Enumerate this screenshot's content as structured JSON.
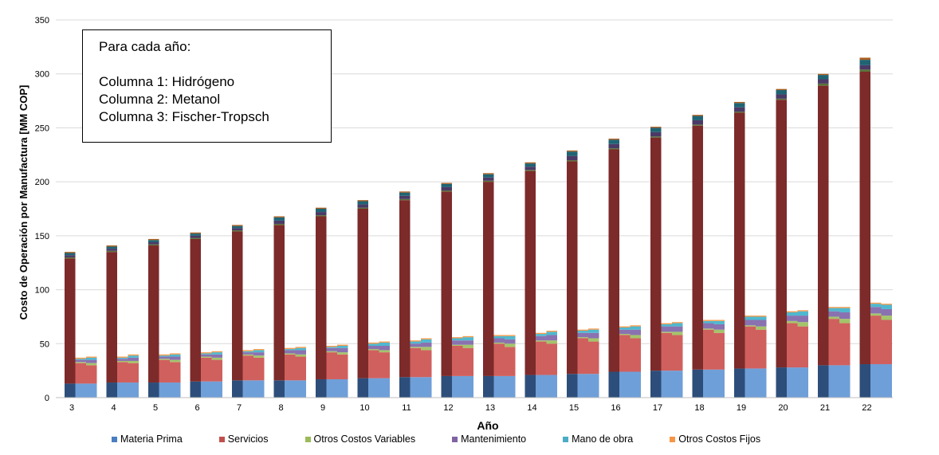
{
  "chart_data": {
    "type": "bar",
    "stacked": true,
    "grouped": true,
    "title": "",
    "xlabel": "Año",
    "ylabel": "Costo de Operación por Manufactura [MM COP]",
    "ylim": [
      0,
      350
    ],
    "yticks": [
      0,
      50,
      100,
      150,
      200,
      250,
      300,
      350
    ],
    "grid": true,
    "legend_position": "bottom",
    "categories": [
      "3",
      "4",
      "5",
      "6",
      "7",
      "8",
      "9",
      "10",
      "11",
      "12",
      "13",
      "14",
      "15",
      "16",
      "17",
      "18",
      "19",
      "20",
      "21",
      "22"
    ],
    "group_members": [
      "Columna 1: Hidrógeno",
      "Columna 2: Metanol",
      "Columna 3: Fischer-Tropsch"
    ],
    "series_colors": {
      "Materia Prima": "#6f9fd8",
      "Servicios": "#d0605e",
      "Otros Costos Variables": "#a4c46a",
      "Mantenimiento": "#8a72b0",
      "Mano de obra": "#4fb8cf",
      "Otros Costos Fijos": "#f79a49"
    },
    "dark_series_colors": {
      "Materia Prima": "#2d4e7a",
      "Servicios": "#7d2a2a",
      "Otros Costos Variables": "#5a7238",
      "Mantenimiento": "#4b3a66",
      "Mano de obra": "#206474",
      "Otros Costos Fijos": "#a95d1e"
    },
    "bars": {
      "Hidrógeno": {
        "Materia Prima": [
          13,
          14,
          14,
          15,
          16,
          16,
          17,
          18,
          19,
          20,
          20,
          21,
          22,
          24,
          25,
          26,
          27,
          28,
          30,
          31
        ],
        "Servicios": [
          116,
          121,
          127,
          132,
          138,
          144,
          151,
          157,
          164,
          171,
          180,
          189,
          197,
          206,
          216,
          226,
          237,
          248,
          259,
          271
        ],
        "Otros Costos Variables": [
          1,
          1,
          1,
          1,
          1,
          1,
          1,
          1,
          1,
          1,
          1,
          1,
          1,
          1,
          1,
          1,
          1,
          1,
          2,
          2
        ],
        "Mantenimiento": [
          2,
          2,
          2,
          2,
          2,
          3,
          3,
          3,
          3,
          3,
          3,
          3,
          4,
          4,
          4,
          4,
          4,
          4,
          4,
          4
        ],
        "Mano de obra": [
          2,
          2,
          2,
          2,
          2,
          3,
          3,
          3,
          3,
          3,
          3,
          3,
          4,
          4,
          4,
          4,
          4,
          4,
          4,
          5
        ],
        "Otros Costos Fijos": [
          1,
          1,
          1,
          1,
          1,
          1,
          1,
          1,
          1,
          1,
          1,
          1,
          1,
          1,
          1,
          1,
          1,
          1,
          1,
          2
        ]
      },
      "Metanol": {
        "Materia Prima": [
          13,
          14,
          14,
          15,
          16,
          16,
          17,
          18,
          19,
          20,
          20,
          21,
          22,
          24,
          25,
          26,
          27,
          28,
          30,
          31
        ],
        "Servicios": [
          19,
          19,
          21,
          22,
          23,
          24,
          25,
          26,
          27,
          28,
          30,
          31,
          33,
          34,
          35,
          37,
          39,
          41,
          43,
          45
        ],
        "Otros Costos Variables": [
          1,
          1,
          1,
          1,
          1,
          1,
          1,
          1,
          1,
          1,
          1,
          1,
          1,
          1,
          1,
          1,
          1,
          2,
          2,
          2
        ],
        "Mantenimiento": [
          2,
          2,
          2,
          2,
          2,
          3,
          3,
          3,
          3,
          4,
          4,
          4,
          4,
          4,
          5,
          5,
          5,
          5,
          5,
          6
        ],
        "Mano de obra": [
          1,
          1,
          1,
          1,
          1,
          1,
          1,
          2,
          2,
          2,
          2,
          2,
          2,
          2,
          2,
          2,
          3,
          3,
          3,
          3
        ],
        "Otros Costos Fijos": [
          1,
          1,
          1,
          1,
          1,
          1,
          1,
          1,
          1,
          1,
          1,
          1,
          1,
          1,
          1,
          1,
          1,
          1,
          1,
          1
        ]
      },
      "Fischer-Tropsch": {
        "Materia Prima": [
          13,
          14,
          14,
          15,
          16,
          16,
          17,
          18,
          19,
          20,
          20,
          21,
          22,
          24,
          25,
          26,
          27,
          28,
          30,
          31
        ],
        "Servicios": [
          17,
          18,
          19,
          20,
          21,
          22,
          23,
          24,
          25,
          26,
          27,
          29,
          30,
          31,
          33,
          34,
          36,
          38,
          39,
          41
        ],
        "Otros Costos Variables": [
          2,
          2,
          2,
          2,
          2,
          2,
          2,
          2,
          3,
          3,
          3,
          3,
          3,
          3,
          3,
          3,
          3,
          4,
          4,
          4
        ],
        "Mantenimiento": [
          3,
          3,
          3,
          3,
          3,
          4,
          4,
          4,
          4,
          4,
          4,
          5,
          5,
          5,
          5,
          5,
          6,
          6,
          6,
          6
        ],
        "Mano de obra": [
          2,
          2,
          2,
          2,
          2,
          2,
          2,
          3,
          3,
          3,
          3,
          3,
          3,
          3,
          3,
          3,
          3,
          4,
          4,
          4
        ],
        "Otros Costos Fijos": [
          1,
          1,
          1,
          1,
          1,
          1,
          1,
          1,
          1,
          1,
          1,
          1,
          1,
          1,
          1,
          1,
          1,
          1,
          1,
          1
        ]
      }
    }
  },
  "annotation": {
    "heading": "Para cada año:",
    "line1": "Columna 1: Hidrógeno",
    "line2": "Columna 2: Metanol",
    "line3": "Columna 3: Fischer-Tropsch"
  },
  "legend": [
    {
      "label": "Materia Prima",
      "color": "#4a7ec2"
    },
    {
      "label": "Servicios",
      "color": "#c0504d"
    },
    {
      "label": "Otros Costos Variables",
      "color": "#9bbb59"
    },
    {
      "label": "Mantenimiento",
      "color": "#8064a2"
    },
    {
      "label": "Mano de obra",
      "color": "#4bacc6"
    },
    {
      "label": "Otros Costos Fijos",
      "color": "#f79646"
    }
  ]
}
